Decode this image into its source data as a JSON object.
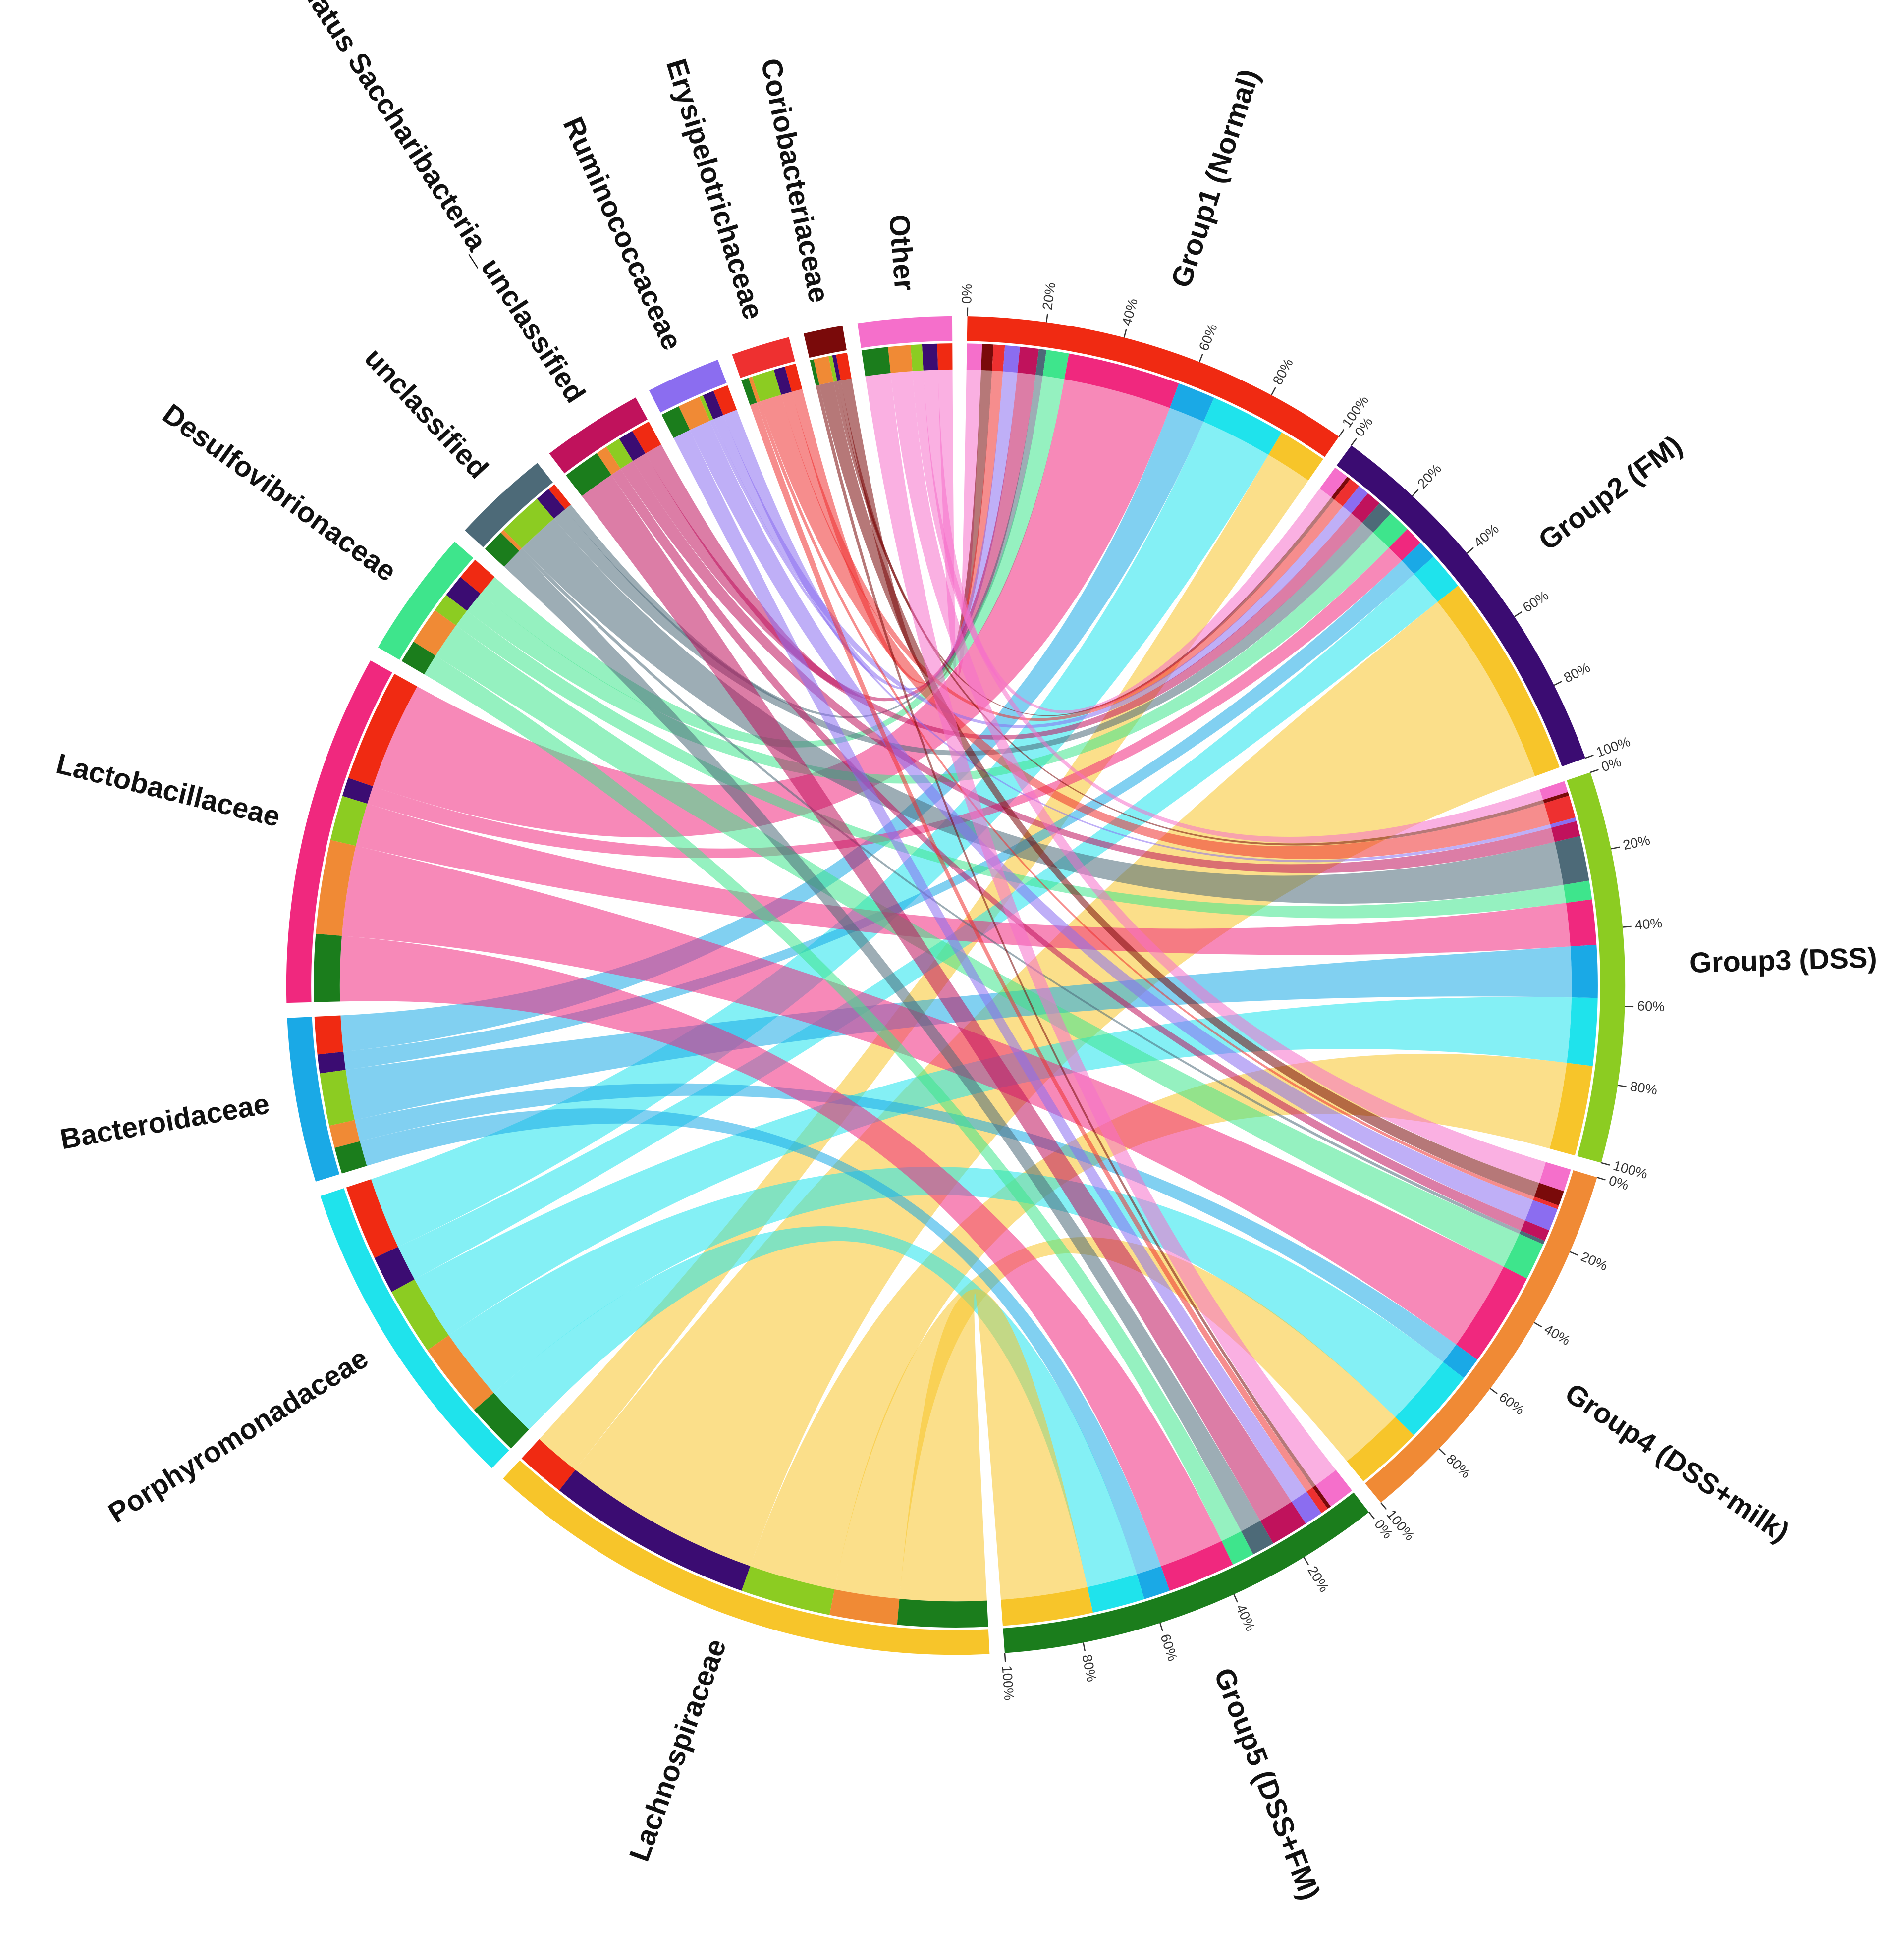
{
  "chart_data": {
    "type": "chord",
    "series": [
      {
        "name": "Group1 (Normal)",
        "color": "#f02a12",
        "values": [
          4,
          3,
          3,
          4,
          5,
          2,
          6,
          30,
          10,
          20,
          13
        ]
      },
      {
        "name": "Group2 (FM)",
        "color": "#3b0c72",
        "values": [
          4,
          1,
          3,
          3,
          4,
          4,
          6,
          5,
          5,
          10,
          55
        ]
      },
      {
        "name": "Group3 (DSS)",
        "color": "#8ccc22",
        "values": [
          3,
          1,
          6,
          1,
          4,
          12,
          5,
          12,
          14,
          18,
          24
        ]
      },
      {
        "name": "Group4 (DSS+milk)",
        "color": "#f08a35",
        "values": [
          6,
          4,
          1,
          6,
          3,
          1,
          10,
          25,
          6,
          20,
          18
        ]
      },
      {
        "name": "Group5 (DSS+FM)",
        "color": "#1b7d1c",
        "values": [
          7,
          1,
          2,
          5,
          10,
          6,
          6,
          18,
          7,
          14,
          24
        ]
      }
    ],
    "categories": [
      "Other",
      "Coriobacteriaceae",
      "Erysipelotrichaceae",
      "Ruminococcaceae",
      "Candidatus Saccharibacteria_unclassified",
      "unclassified",
      "Desulfovibrionaceae",
      "Lactobacillaceae",
      "Bacteroidaceae",
      "Porphyromonadaceae",
      "Lachnospiraceae"
    ],
    "category_colors": [
      "#f56fcb",
      "#7a0a0a",
      "#ee3030",
      "#8b6df0",
      "#c0125c",
      "#4d6a78",
      "#3ee58c",
      "#f0287e",
      "#1aa9e6",
      "#1fe3ec",
      "#f7c52a"
    ],
    "ticks": [
      {
        "value": 0,
        "label": "0%"
      },
      {
        "value": 20,
        "label": "20%"
      },
      {
        "value": 40,
        "label": "40%"
      },
      {
        "value": 60,
        "label": "60%"
      },
      {
        "value": 80,
        "label": "80%"
      },
      {
        "value": 100,
        "label": "100%"
      }
    ]
  }
}
